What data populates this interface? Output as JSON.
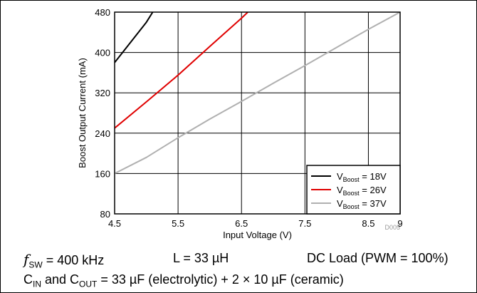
{
  "chart_data": {
    "type": "line",
    "xlabel": "Input Voltage (V)",
    "ylabel": "Boost Output Current (mA)",
    "xlim": [
      4.5,
      9
    ],
    "ylim": [
      80,
      480
    ],
    "xticks": [
      4.5,
      5.5,
      6.5,
      7.5,
      8.5,
      9
    ],
    "xtick_labels": [
      "4.5",
      "5.5",
      "6.5",
      "7.5",
      "8.5",
      "9"
    ],
    "yticks": [
      80,
      160,
      240,
      320,
      400,
      480
    ],
    "ytick_labels": [
      "80",
      "160",
      "240",
      "320",
      "400",
      "480"
    ],
    "grid": true,
    "legend_position": "bottom-right",
    "series": [
      {
        "name_main": "V",
        "name_sub": "Boost",
        "name_rest": " = 18V",
        "color": "#000000",
        "x": [
          4.5,
          4.75,
          5.0,
          5.1
        ],
        "y": [
          380,
          420,
          460,
          480
        ]
      },
      {
        "name_main": "V",
        "name_sub": "Boost",
        "name_rest": " = 26V",
        "color": "#e00000",
        "x": [
          4.5,
          5.0,
          5.5,
          6.0,
          6.5,
          6.6
        ],
        "y": [
          250,
          302,
          355,
          412,
          468,
          480
        ]
      },
      {
        "name_main": "V",
        "name_sub": "Boost",
        "name_rest": " = 37V",
        "color": "#b0b0b0",
        "x": [
          4.5,
          5.0,
          5.5,
          6.0,
          6.5,
          7.0,
          7.5,
          8.0,
          8.5,
          9.0
        ],
        "y": [
          160,
          192,
          231,
          268,
          303,
          339,
          374,
          410,
          446,
          480
        ]
      }
    ],
    "watermark": "D005"
  },
  "captions": {
    "fsw_f": "f",
    "fsw_sub": "SW",
    "fsw_rest": " = 400 kHz",
    "inductor": "L = 33 µH",
    "load": "DC Load (PWM = 100%)",
    "cap_c1": "C",
    "cap_c1_sub": "IN",
    "cap_mid": " and C",
    "cap_c2_sub": "OUT",
    "cap_rest": " = 33 µF (electrolytic) + 2 × 10 µF (ceramic)"
  }
}
